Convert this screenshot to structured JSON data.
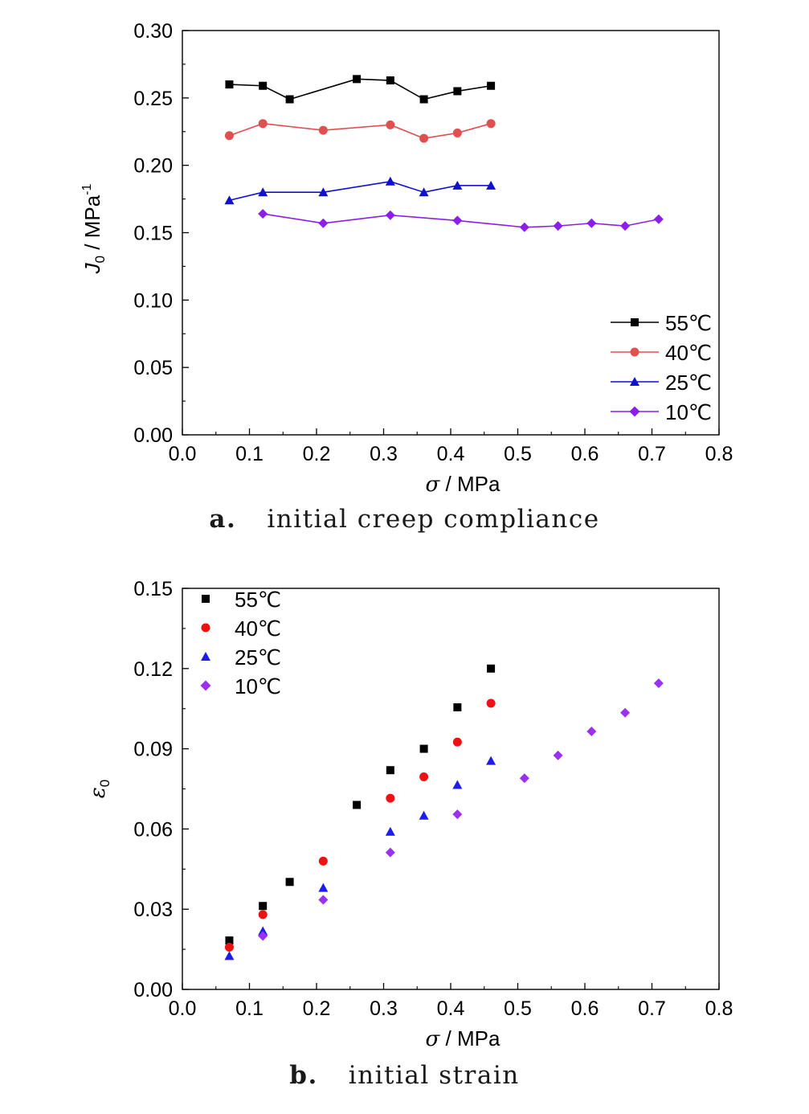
{
  "captions": [
    {
      "letter": "a.",
      "text": "initial creep compliance"
    },
    {
      "letter": "b.",
      "text": "initial strain"
    }
  ],
  "chart_data": [
    {
      "type": "line",
      "xlabel": "σ / MPa",
      "ylabel": "J₀ / MPa⁻¹",
      "xlim": [
        0.0,
        0.8
      ],
      "ylim": [
        0.0,
        0.3
      ],
      "xticks": [
        "0.0",
        "0.1",
        "0.2",
        "0.3",
        "0.4",
        "0.5",
        "0.6",
        "0.7",
        "0.8"
      ],
      "yticks": [
        "0.00",
        "0.05",
        "0.10",
        "0.15",
        "0.20",
        "0.25",
        "0.30"
      ],
      "legend_position": "bottom-right",
      "grid": false,
      "series": [
        {
          "name": "55℃",
          "color": "#000000",
          "marker": "square",
          "x": [
            0.07,
            0.12,
            0.16,
            0.26,
            0.31,
            0.36,
            0.41,
            0.46
          ],
          "y": [
            0.26,
            0.259,
            0.249,
            0.264,
            0.263,
            0.249,
            0.255,
            0.259
          ]
        },
        {
          "name": "40℃",
          "color": "#e05050",
          "marker": "circle",
          "x": [
            0.07,
            0.12,
            0.21,
            0.31,
            0.36,
            0.41,
            0.46
          ],
          "y": [
            0.222,
            0.231,
            0.226,
            0.23,
            0.22,
            0.224,
            0.231
          ]
        },
        {
          "name": "25℃",
          "color": "#1010d0",
          "marker": "triangle",
          "x": [
            0.07,
            0.12,
            0.21,
            0.31,
            0.36,
            0.41,
            0.46
          ],
          "y": [
            0.174,
            0.18,
            0.18,
            0.188,
            0.18,
            0.185,
            0.185
          ]
        },
        {
          "name": "10℃",
          "color": "#8b1fe8",
          "marker": "diamond",
          "x": [
            0.12,
            0.21,
            0.31,
            0.41,
            0.51,
            0.56,
            0.61,
            0.66,
            0.71
          ],
          "y": [
            0.164,
            0.157,
            0.163,
            0.159,
            0.154,
            0.155,
            0.157,
            0.155,
            0.16
          ]
        }
      ]
    },
    {
      "type": "scatter",
      "xlabel": "σ / MPa",
      "ylabel": "ε₀",
      "xlim": [
        0.0,
        0.8
      ],
      "ylim": [
        0.0,
        0.15
      ],
      "xticks": [
        "0.0",
        "0.1",
        "0.2",
        "0.3",
        "0.4",
        "0.5",
        "0.6",
        "0.7",
        "0.8"
      ],
      "yticks": [
        "0.00",
        "0.03",
        "0.06",
        "0.09",
        "0.12",
        "0.15"
      ],
      "legend_position": "top-left",
      "grid": false,
      "series": [
        {
          "name": "55℃",
          "color": "#000000",
          "marker": "square",
          "x": [
            0.07,
            0.12,
            0.16,
            0.26,
            0.31,
            0.36,
            0.41,
            0.46
          ],
          "y": [
            0.0183,
            0.0312,
            0.0402,
            0.069,
            0.082,
            0.09,
            0.1055,
            0.12
          ]
        },
        {
          "name": "40℃",
          "color": "#ee1111",
          "marker": "circle",
          "x": [
            0.07,
            0.12,
            0.21,
            0.31,
            0.36,
            0.41,
            0.46
          ],
          "y": [
            0.0158,
            0.028,
            0.048,
            0.0715,
            0.0795,
            0.0925,
            0.107
          ]
        },
        {
          "name": "25℃",
          "color": "#1c1cee",
          "marker": "triangle",
          "x": [
            0.07,
            0.12,
            0.21,
            0.31,
            0.36,
            0.41,
            0.46
          ],
          "y": [
            0.0125,
            0.0218,
            0.038,
            0.059,
            0.065,
            0.0765,
            0.0855
          ]
        },
        {
          "name": "10℃",
          "color": "#9b30f0",
          "marker": "diamond",
          "x": [
            0.12,
            0.21,
            0.31,
            0.41,
            0.51,
            0.56,
            0.61,
            0.66,
            0.71
          ],
          "y": [
            0.02,
            0.0335,
            0.0512,
            0.0655,
            0.079,
            0.0875,
            0.0965,
            0.1035,
            0.1145
          ]
        }
      ]
    }
  ]
}
